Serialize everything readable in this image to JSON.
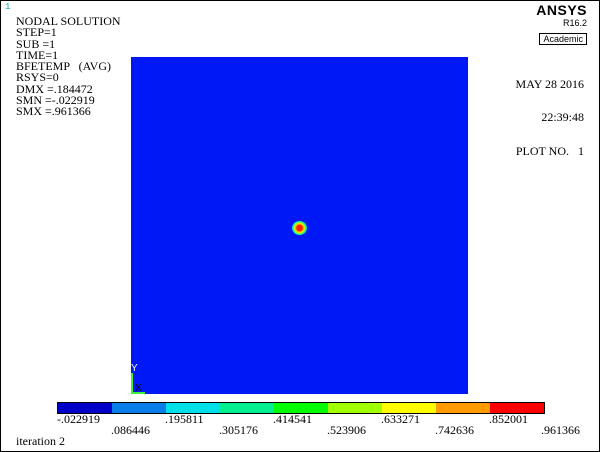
{
  "window_number": "1",
  "header": {
    "title": "NODAL SOLUTION",
    "lines": [
      "STEP=1",
      "SUB =1",
      "TIME=1",
      "BFETEMP   (AVG)",
      "RSYS=0",
      "DMX =.184472",
      "SMN =-.022919",
      "SMX =.961366"
    ]
  },
  "brand": {
    "logo": "ANSYS",
    "version": "R16.2",
    "edition": "Academic"
  },
  "stamp": {
    "date": "MAY 28 2016",
    "time": "22:39:48",
    "plot": "PLOT NO.   1"
  },
  "triad": {
    "y": "Y",
    "x": "X"
  },
  "legend": {
    "colors": [
      "#0000c8",
      "#0a7ee8",
      "#00e0e8",
      "#00f090",
      "#00ff00",
      "#a0ff00",
      "#ffff00",
      "#ff9a00",
      "#ff0000"
    ],
    "ticks_top": [
      "-.022919",
      ".195811",
      ".414541",
      ".633271",
      ".852001"
    ],
    "ticks_bottom": [
      ".086446",
      ".305176",
      ".523906",
      ".742636",
      ".961366"
    ]
  },
  "status": "iteration 2"
}
